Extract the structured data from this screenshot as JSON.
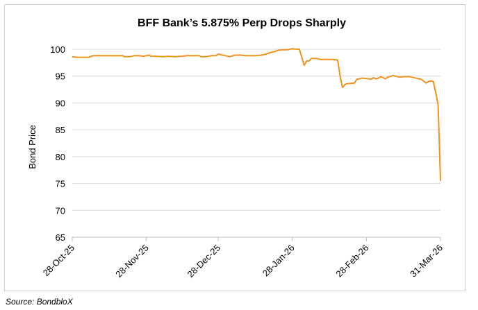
{
  "chart_data": {
    "type": "line",
    "title": "BFF Bank’s 5.875% Perp Drops Sharply",
    "xlabel": "",
    "ylabel": "Bond Price",
    "ylim": [
      65,
      100
    ],
    "yticks": [
      65,
      70,
      75,
      80,
      85,
      90,
      95,
      100
    ],
    "xlim": [
      0,
      154
    ],
    "xticks": [
      {
        "day": 0,
        "label": "28-Oct-25"
      },
      {
        "day": 31,
        "label": "28-Nov-25"
      },
      {
        "day": 61,
        "label": "28-Dec-25"
      },
      {
        "day": 92,
        "label": "28-Jan-26"
      },
      {
        "day": 123,
        "label": "28-Feb-26"
      },
      {
        "day": 154,
        "label": "31-Mar-26"
      }
    ],
    "grid": true,
    "color": "#f0921d",
    "series": [
      {
        "name": "BFF Bank 5.875% Perp",
        "x": [
          0,
          2,
          7,
          8,
          9,
          12,
          15,
          18,
          21,
          22,
          24,
          26,
          28,
          30,
          32,
          33,
          35,
          38,
          40,
          43,
          46,
          48,
          50,
          53,
          54,
          56,
          58,
          60,
          61,
          63,
          66,
          68,
          70,
          73,
          76,
          77,
          79,
          81,
          83,
          85,
          86,
          88,
          90,
          91,
          92,
          94,
          95,
          97,
          98,
          99,
          100,
          102,
          104,
          105,
          107,
          109,
          111,
          112,
          113,
          114,
          115,
          118,
          119,
          120,
          121,
          122,
          124,
          125,
          126,
          127,
          128,
          129,
          130,
          131,
          132,
          134,
          135,
          137,
          139,
          141,
          142,
          144,
          146,
          148,
          149,
          150,
          151,
          152,
          153,
          154
        ],
        "y": [
          98.6,
          98.5,
          98.5,
          98.7,
          98.8,
          98.8,
          98.8,
          98.8,
          98.8,
          98.6,
          98.6,
          98.8,
          98.8,
          98.7,
          98.9,
          98.7,
          98.7,
          98.6,
          98.7,
          98.6,
          98.7,
          98.8,
          98.8,
          98.8,
          98.6,
          98.6,
          98.8,
          98.8,
          99.1,
          98.9,
          98.6,
          98.9,
          98.9,
          98.8,
          98.8,
          98.8,
          98.9,
          99.1,
          99.4,
          99.6,
          99.8,
          99.9,
          99.9,
          100.0,
          100.1,
          100.0,
          100.0,
          97.0,
          97.8,
          97.8,
          98.3,
          98.3,
          98.1,
          98.1,
          98.1,
          98.1,
          98.0,
          95.0,
          92.9,
          93.4,
          93.6,
          93.7,
          94.4,
          94.5,
          94.6,
          94.6,
          94.5,
          94.4,
          94.7,
          94.5,
          94.6,
          94.9,
          94.7,
          94.5,
          94.8,
          95.1,
          95.0,
          94.8,
          94.9,
          94.9,
          94.8,
          94.6,
          94.4,
          93.7,
          94.0,
          94.1,
          94.0,
          92.0,
          89.6,
          75.5
        ]
      }
    ]
  },
  "source": "Source: BondbloX"
}
